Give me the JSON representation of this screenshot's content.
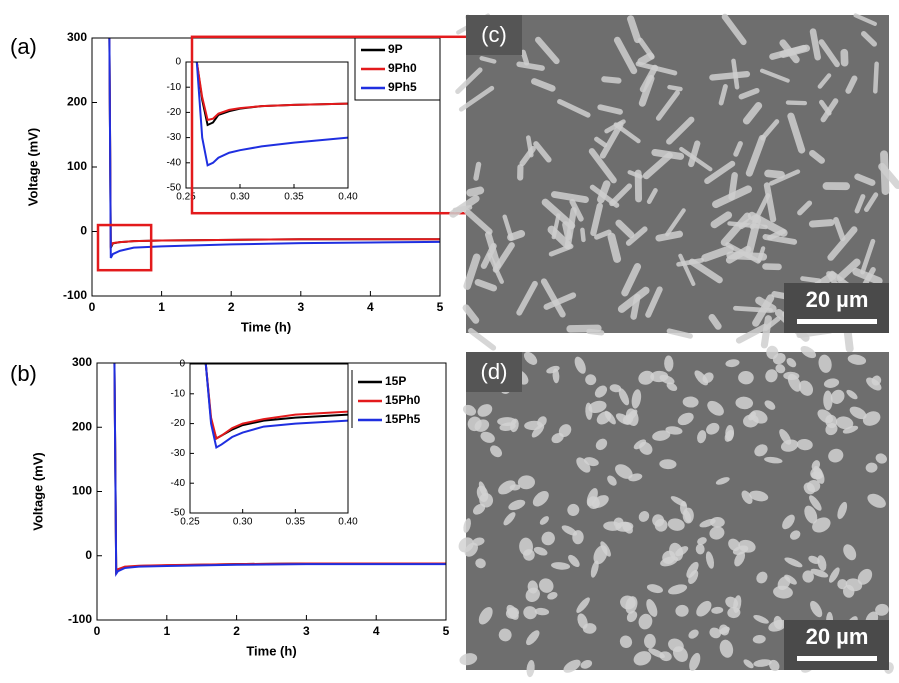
{
  "chart_data": [
    {
      "type": "line",
      "panel_label": "(a)",
      "x_label": "Time (h)",
      "y_label": "Voltage (mV)",
      "xlim": [
        0,
        5
      ],
      "ylim": [
        -100,
        300
      ],
      "xticks": [
        0,
        1,
        2,
        3,
        4,
        5
      ],
      "yticks": [
        -100,
        0,
        100,
        200,
        300
      ],
      "legend": "upper right",
      "x": [
        0.25,
        0.27,
        0.3,
        0.4,
        0.6,
        1,
        2,
        3,
        4,
        5
      ],
      "series": [
        {
          "name": "9P",
          "color": "#000000",
          "values": [
            300,
            -25,
            -18.5,
            -16.5,
            -15,
            -14,
            -13,
            -12,
            -12,
            -12
          ]
        },
        {
          "name": "9Ph0",
          "color": "#e31a1c",
          "values": [
            300,
            -23,
            -18,
            -16.5,
            -15,
            -14,
            -13,
            -12,
            -12,
            -12
          ]
        },
        {
          "name": "9Ph5",
          "color": "#1f2fe0",
          "values": [
            300,
            -41,
            -35,
            -30,
            -25,
            -23,
            -20,
            -18,
            -17,
            -16
          ]
        }
      ]
    },
    {
      "type": "line",
      "xlim": [
        0.25,
        0.4
      ],
      "ylim": [
        -50,
        0
      ],
      "xticks": [
        0.25,
        {
          "value": 0.3,
          "label": "0.30"
        },
        0.35,
        {
          "value": 0.4,
          "label": "0.40"
        }
      ],
      "yticks": [
        -50,
        -40,
        -30,
        -20,
        -10,
        0
      ],
      "x": [
        0.26,
        0.265,
        0.27,
        0.275,
        0.28,
        0.29,
        0.3,
        0.32,
        0.35,
        0.4
      ],
      "series": [
        {
          "color": "#000000",
          "values": [
            0,
            -15,
            -25,
            -24,
            -21,
            -19.5,
            -18.5,
            -17.5,
            -17,
            -16.5
          ]
        },
        {
          "color": "#e31a1c",
          "values": [
            0,
            -14,
            -23,
            -22.5,
            -20.5,
            -19,
            -18.3,
            -17.5,
            -17,
            -16.5
          ]
        },
        {
          "color": "#1f2fe0",
          "values": [
            0,
            -30,
            -41,
            -40,
            -38,
            -36,
            -35,
            -33.5,
            -32,
            -30
          ]
        }
      ]
    },
    {
      "type": "line",
      "panel_label": "(b)",
      "x_label": "Time (h)",
      "y_label": "Voltage (mV)",
      "xlim": [
        0,
        5
      ],
      "ylim": [
        -100,
        300
      ],
      "xticks": [
        0,
        1,
        2,
        3,
        4,
        5
      ],
      "yticks": [
        -100,
        0,
        100,
        200,
        300
      ],
      "legend": "upper right",
      "x": [
        0.25,
        0.275,
        0.3,
        0.4,
        0.6,
        1,
        2,
        3,
        4,
        5
      ],
      "series": [
        {
          "name": "15P",
          "color": "#000000",
          "values": [
            300,
            -25,
            -22,
            -18,
            -16,
            -15,
            -13,
            -12,
            -12,
            -12
          ]
        },
        {
          "name": "15Ph0",
          "color": "#e31a1c",
          "values": [
            300,
            -25,
            -21,
            -17,
            -15.5,
            -14.5,
            -13,
            -12,
            -12,
            -12
          ]
        },
        {
          "name": "15Ph5",
          "color": "#1f2fe0",
          "values": [
            300,
            -28,
            -24,
            -19,
            -17,
            -16,
            -14,
            -13,
            -13,
            -13
          ]
        }
      ]
    },
    {
      "type": "line",
      "xlim": [
        0.25,
        0.4
      ],
      "ylim": [
        -50,
        0
      ],
      "xticks": [
        0.25,
        {
          "value": 0.3,
          "label": "0.30"
        },
        0.35,
        {
          "value": 0.4,
          "label": "0.40"
        }
      ],
      "yticks": [
        -50,
        -40,
        -30,
        -20,
        -10,
        0
      ],
      "x": [
        0.265,
        0.27,
        0.275,
        0.28,
        0.29,
        0.3,
        0.32,
        0.35,
        0.4
      ],
      "series": [
        {
          "color": "#000000",
          "values": [
            0,
            -19,
            -25,
            -24,
            -22,
            -20.5,
            -19,
            -18,
            -17
          ]
        },
        {
          "color": "#e31a1c",
          "values": [
            0,
            -18,
            -25,
            -24,
            -21.5,
            -20,
            -18.5,
            -17,
            -16
          ]
        },
        {
          "color": "#1f2fe0",
          "values": [
            0,
            -20,
            -28,
            -27,
            -24.5,
            -23,
            -21,
            -20,
            -19
          ]
        }
      ]
    }
  ],
  "images": [
    {
      "label": "(c)",
      "scale_bar": "20 µm"
    },
    {
      "label": "(d)",
      "scale_bar": "20 µm"
    }
  ]
}
